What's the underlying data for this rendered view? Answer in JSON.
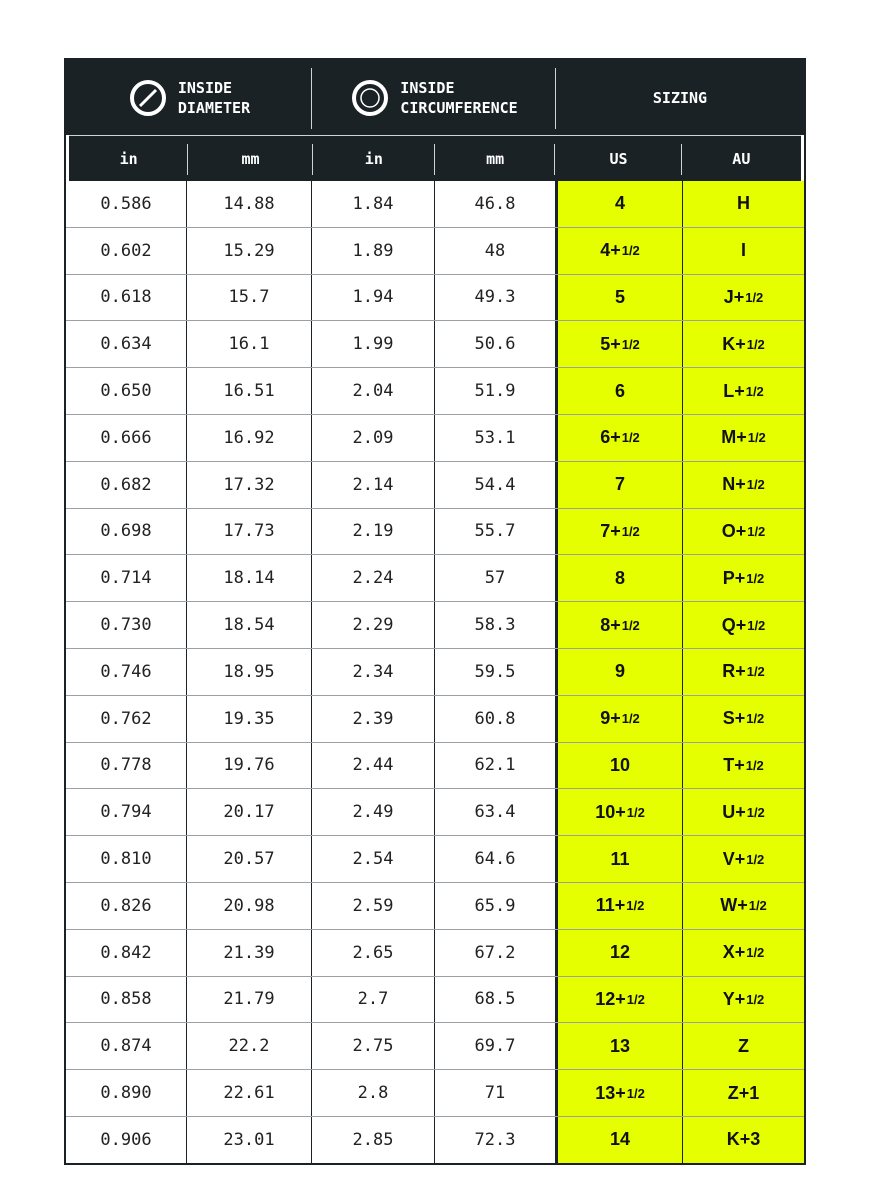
{
  "header": {
    "groups": [
      {
        "label_1": "INSIDE",
        "label_2": "DIAMETER",
        "icon": "diameter-icon"
      },
      {
        "label_1": "INSIDE",
        "label_2": "CIRCUMFERENCE",
        "icon": "circumference-icon"
      },
      {
        "label_1": "SIZING",
        "label_2": ""
      }
    ],
    "columns": [
      "in",
      "mm",
      "in",
      "mm",
      "US",
      "AU"
    ]
  },
  "colors": {
    "header_bg": "#1b2226",
    "highlight": "#e5ff00"
  },
  "rows": [
    [
      "0.586",
      "14.88",
      "1.84",
      "46.8",
      "4",
      "H"
    ],
    [
      "0.602",
      "15.29",
      "1.89",
      "48",
      "4+1/2",
      "I"
    ],
    [
      "0.618",
      "15.7",
      "1.94",
      "49.3",
      "5",
      "J+1/2"
    ],
    [
      "0.634",
      "16.1",
      "1.99",
      "50.6",
      "5+1/2",
      "K+1/2"
    ],
    [
      "0.650",
      "16.51",
      "2.04",
      "51.9",
      "6",
      "L+1/2"
    ],
    [
      "0.666",
      "16.92",
      "2.09",
      "53.1",
      "6+1/2",
      "M+1/2"
    ],
    [
      "0.682",
      "17.32",
      "2.14",
      "54.4",
      "7",
      "N+1/2"
    ],
    [
      "0.698",
      "17.73",
      "2.19",
      "55.7",
      "7+1/2",
      "O+1/2"
    ],
    [
      "0.714",
      "18.14",
      "2.24",
      "57",
      "8",
      "P+1/2"
    ],
    [
      "0.730",
      "18.54",
      "2.29",
      "58.3",
      "8+1/2",
      "Q+1/2"
    ],
    [
      "0.746",
      "18.95",
      "2.34",
      "59.5",
      "9",
      "R+1/2"
    ],
    [
      "0.762",
      "19.35",
      "2.39",
      "60.8",
      "9+1/2",
      "S+1/2"
    ],
    [
      "0.778",
      "19.76",
      "2.44",
      "62.1",
      "10",
      "T+1/2"
    ],
    [
      "0.794",
      "20.17",
      "2.49",
      "63.4",
      "10+1/2",
      "U+1/2"
    ],
    [
      "0.810",
      "20.57",
      "2.54",
      "64.6",
      "11",
      "V+1/2"
    ],
    [
      "0.826",
      "20.98",
      "2.59",
      "65.9",
      "11+1/2",
      "W+1/2"
    ],
    [
      "0.842",
      "21.39",
      "2.65",
      "67.2",
      "12",
      "X+1/2"
    ],
    [
      "0.858",
      "21.79",
      "2.7",
      "68.5",
      "12+1/2",
      "Y+1/2"
    ],
    [
      "0.874",
      "22.2",
      "2.75",
      "69.7",
      "13",
      "Z"
    ],
    [
      "0.890",
      "22.61",
      "2.8",
      "71",
      "13+1/2",
      "Z+1"
    ],
    [
      "0.906",
      "23.01",
      "2.85",
      "72.3",
      "14",
      "K+3"
    ]
  ]
}
